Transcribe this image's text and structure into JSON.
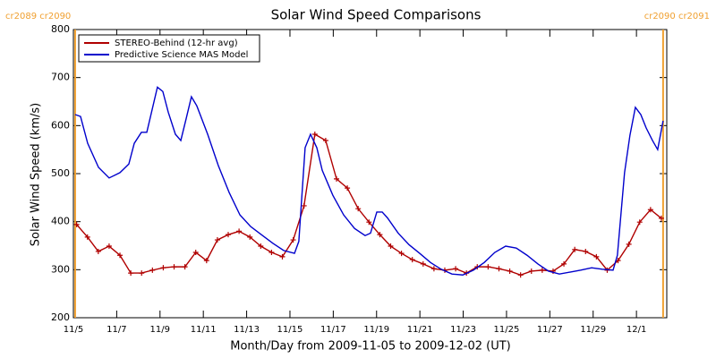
{
  "chart_data": {
    "type": "line",
    "title": "Solar Wind Speed Comparisons",
    "x_label": "Month/Day from 2009-11-05 to 2009-12-02 (UT)",
    "y_label": "Solar Wind Speed (km/s)",
    "xlim": [
      0,
      27.4
    ],
    "ylim": [
      200,
      800
    ],
    "xticks": [
      {
        "value": 0,
        "label": "11/5"
      },
      {
        "value": 2,
        "label": "11/7"
      },
      {
        "value": 4,
        "label": "11/9"
      },
      {
        "value": 6,
        "label": "11/11"
      },
      {
        "value": 8,
        "label": "11/13"
      },
      {
        "value": 10,
        "label": "11/15"
      },
      {
        "value": 12,
        "label": "11/17"
      },
      {
        "value": 14,
        "label": "11/19"
      },
      {
        "value": 16,
        "label": "11/21"
      },
      {
        "value": 18,
        "label": "11/23"
      },
      {
        "value": 20,
        "label": "11/25"
      },
      {
        "value": 22,
        "label": "11/27"
      },
      {
        "value": 24,
        "label": "11/29"
      },
      {
        "value": 26,
        "label": "12/1"
      }
    ],
    "yticks": [
      200,
      300,
      400,
      500,
      600,
      700,
      800
    ],
    "legend": "upper left",
    "annotations": [
      {
        "text": "cr2089 cr2090",
        "x": 0.08,
        "color": "#f0a030"
      },
      {
        "text": "cr2090 cr2091",
        "x": 27.23,
        "color": "#f0a030"
      }
    ],
    "series": [
      {
        "name": "STEREO-Behind (12-hr avg)",
        "color": "#b00000",
        "markers": true,
        "x": [
          0.15,
          0.65,
          1.15,
          1.65,
          2.15,
          2.65,
          3.15,
          3.65,
          4.15,
          4.65,
          5.15,
          5.65,
          6.15,
          6.65,
          7.15,
          7.65,
          8.15,
          8.65,
          9.15,
          9.65,
          10.15,
          10.65,
          11.15,
          11.65,
          12.15,
          12.65,
          13.15,
          13.65,
          14.15,
          14.65,
          15.15,
          15.65,
          16.15,
          16.65,
          17.15,
          17.65,
          18.15,
          18.65,
          19.15,
          19.65,
          20.15,
          20.65,
          21.15,
          21.65,
          22.15,
          22.65,
          23.15,
          23.65,
          24.15,
          24.65,
          25.15,
          25.65,
          26.15,
          26.65,
          27.15
        ],
        "values": [
          394,
          368,
          338,
          349,
          330,
          293,
          293,
          299,
          304,
          306,
          306,
          336,
          319,
          362,
          373,
          380,
          368,
          349,
          336,
          327,
          362,
          433,
          582,
          569,
          489,
          470,
          427,
          399,
          373,
          349,
          334,
          321,
          312,
          302,
          299,
          302,
          293,
          306,
          306,
          302,
          297,
          289,
          297,
          299,
          297,
          312,
          342,
          338,
          327,
          299,
          319,
          353,
          399,
          425,
          407
        ]
      },
      {
        "name": "Predictive Science MAS Model",
        "color": "#0000cc",
        "markers": false,
        "x": [
          0.08,
          0.33,
          0.66,
          1.16,
          1.65,
          2.15,
          2.56,
          2.81,
          3.14,
          3.39,
          3.64,
          3.88,
          4.13,
          4.38,
          4.71,
          4.96,
          5.21,
          5.45,
          5.7,
          6.2,
          6.69,
          7.19,
          7.69,
          8.18,
          8.68,
          9.21,
          9.71,
          10.21,
          10.41,
          10.7,
          10.95,
          11.24,
          11.49,
          11.98,
          12.48,
          12.98,
          13.47,
          13.72,
          14.01,
          14.26,
          14.5,
          15.0,
          15.5,
          15.99,
          16.49,
          16.98,
          17.48,
          17.98,
          18.47,
          18.97,
          19.46,
          19.96,
          20.45,
          20.95,
          21.45,
          21.94,
          22.44,
          22.93,
          23.43,
          23.93,
          24.42,
          24.92,
          25.12,
          25.45,
          25.7,
          25.95,
          26.2,
          26.45,
          26.74,
          26.98,
          27.23
        ],
        "values": [
          623,
          619,
          563,
          513,
          491,
          502,
          520,
          563,
          586,
          586,
          634,
          680,
          671,
          628,
          582,
          569,
          615,
          660,
          641,
          582,
          517,
          461,
          414,
          390,
          373,
          355,
          340,
          334,
          359,
          554,
          582,
          554,
          507,
          455,
          414,
          386,
          371,
          376,
          420,
          420,
          408,
          376,
          352,
          334,
          315,
          301,
          291,
          289,
          299,
          315,
          336,
          349,
          345,
          330,
          312,
          297,
          291,
          295,
          299,
          304,
          301,
          299,
          330,
          502,
          580,
          638,
          623,
          595,
          569,
          550,
          610
        ]
      }
    ]
  }
}
